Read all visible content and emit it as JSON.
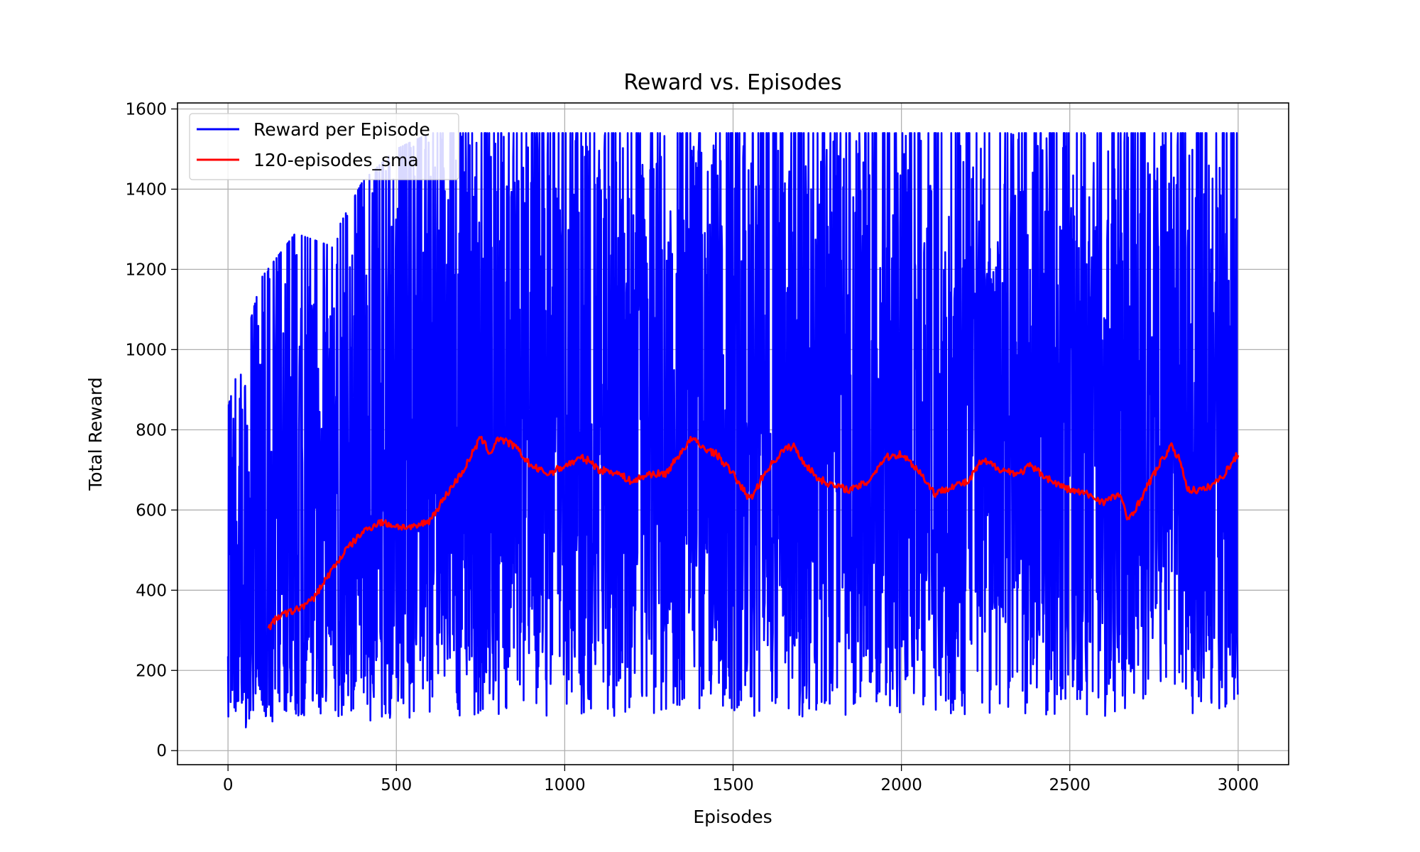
{
  "chart_data": {
    "type": "line",
    "title": "Reward vs. Episodes",
    "xlabel": "Episodes",
    "ylabel": "Total Reward",
    "xlim": [
      -150,
      3150
    ],
    "ylim": [
      -35,
      1615
    ],
    "xticks": [
      0,
      500,
      1000,
      1500,
      2000,
      2500,
      3000
    ],
    "yticks": [
      0,
      200,
      400,
      600,
      800,
      1000,
      1200,
      1400,
      1600
    ],
    "grid": true,
    "legend_position": "top-left",
    "series": [
      {
        "name": "Reward per Episode",
        "color": "#0000ff",
        "episodes": 3000,
        "min": 40,
        "max": 1540,
        "envelope_x": [
          0,
          100,
          200,
          300,
          400,
          500,
          600,
          700,
          800,
          1000,
          1500,
          2000,
          2500,
          3000
        ],
        "envelope_max": [
          855,
          1180,
          1290,
          1260,
          1420,
          1500,
          1540,
          1540,
          1540,
          1540,
          1540,
          1540,
          1540,
          1540
        ],
        "envelope_min": [
          40,
          70,
          75,
          80,
          70,
          80,
          85,
          85,
          85,
          85,
          85,
          85,
          85,
          85
        ]
      },
      {
        "name": "120-episodes_sma",
        "color": "#ff0000",
        "x": [
          120,
          150,
          200,
          250,
          300,
          350,
          400,
          450,
          500,
          550,
          600,
          650,
          700,
          750,
          780,
          800,
          850,
          900,
          950,
          1000,
          1050,
          1080,
          1100,
          1150,
          1200,
          1250,
          1300,
          1350,
          1380,
          1400,
          1450,
          1500,
          1550,
          1600,
          1650,
          1680,
          1700,
          1750,
          1800,
          1850,
          1900,
          1950,
          2000,
          2050,
          2100,
          2150,
          2200,
          2230,
          2250,
          2300,
          2350,
          2380,
          2400,
          2450,
          2500,
          2550,
          2600,
          2650,
          2670,
          2700,
          2750,
          2800,
          2830,
          2850,
          2900,
          2950,
          3000
        ],
        "y": [
          305,
          335,
          350,
          375,
          440,
          500,
          545,
          570,
          560,
          555,
          575,
          640,
          700,
          780,
          740,
          780,
          760,
          710,
          690,
          710,
          730,
          720,
          700,
          695,
          670,
          690,
          690,
          750,
          780,
          760,
          740,
          690,
          625,
          700,
          750,
          760,
          730,
          680,
          660,
          650,
          670,
          730,
          740,
          700,
          640,
          660,
          670,
          715,
          720,
          700,
          690,
          710,
          700,
          670,
          650,
          640,
          620,
          640,
          575,
          610,
          690,
          760,
          720,
          650,
          650,
          680,
          740
        ]
      }
    ]
  }
}
